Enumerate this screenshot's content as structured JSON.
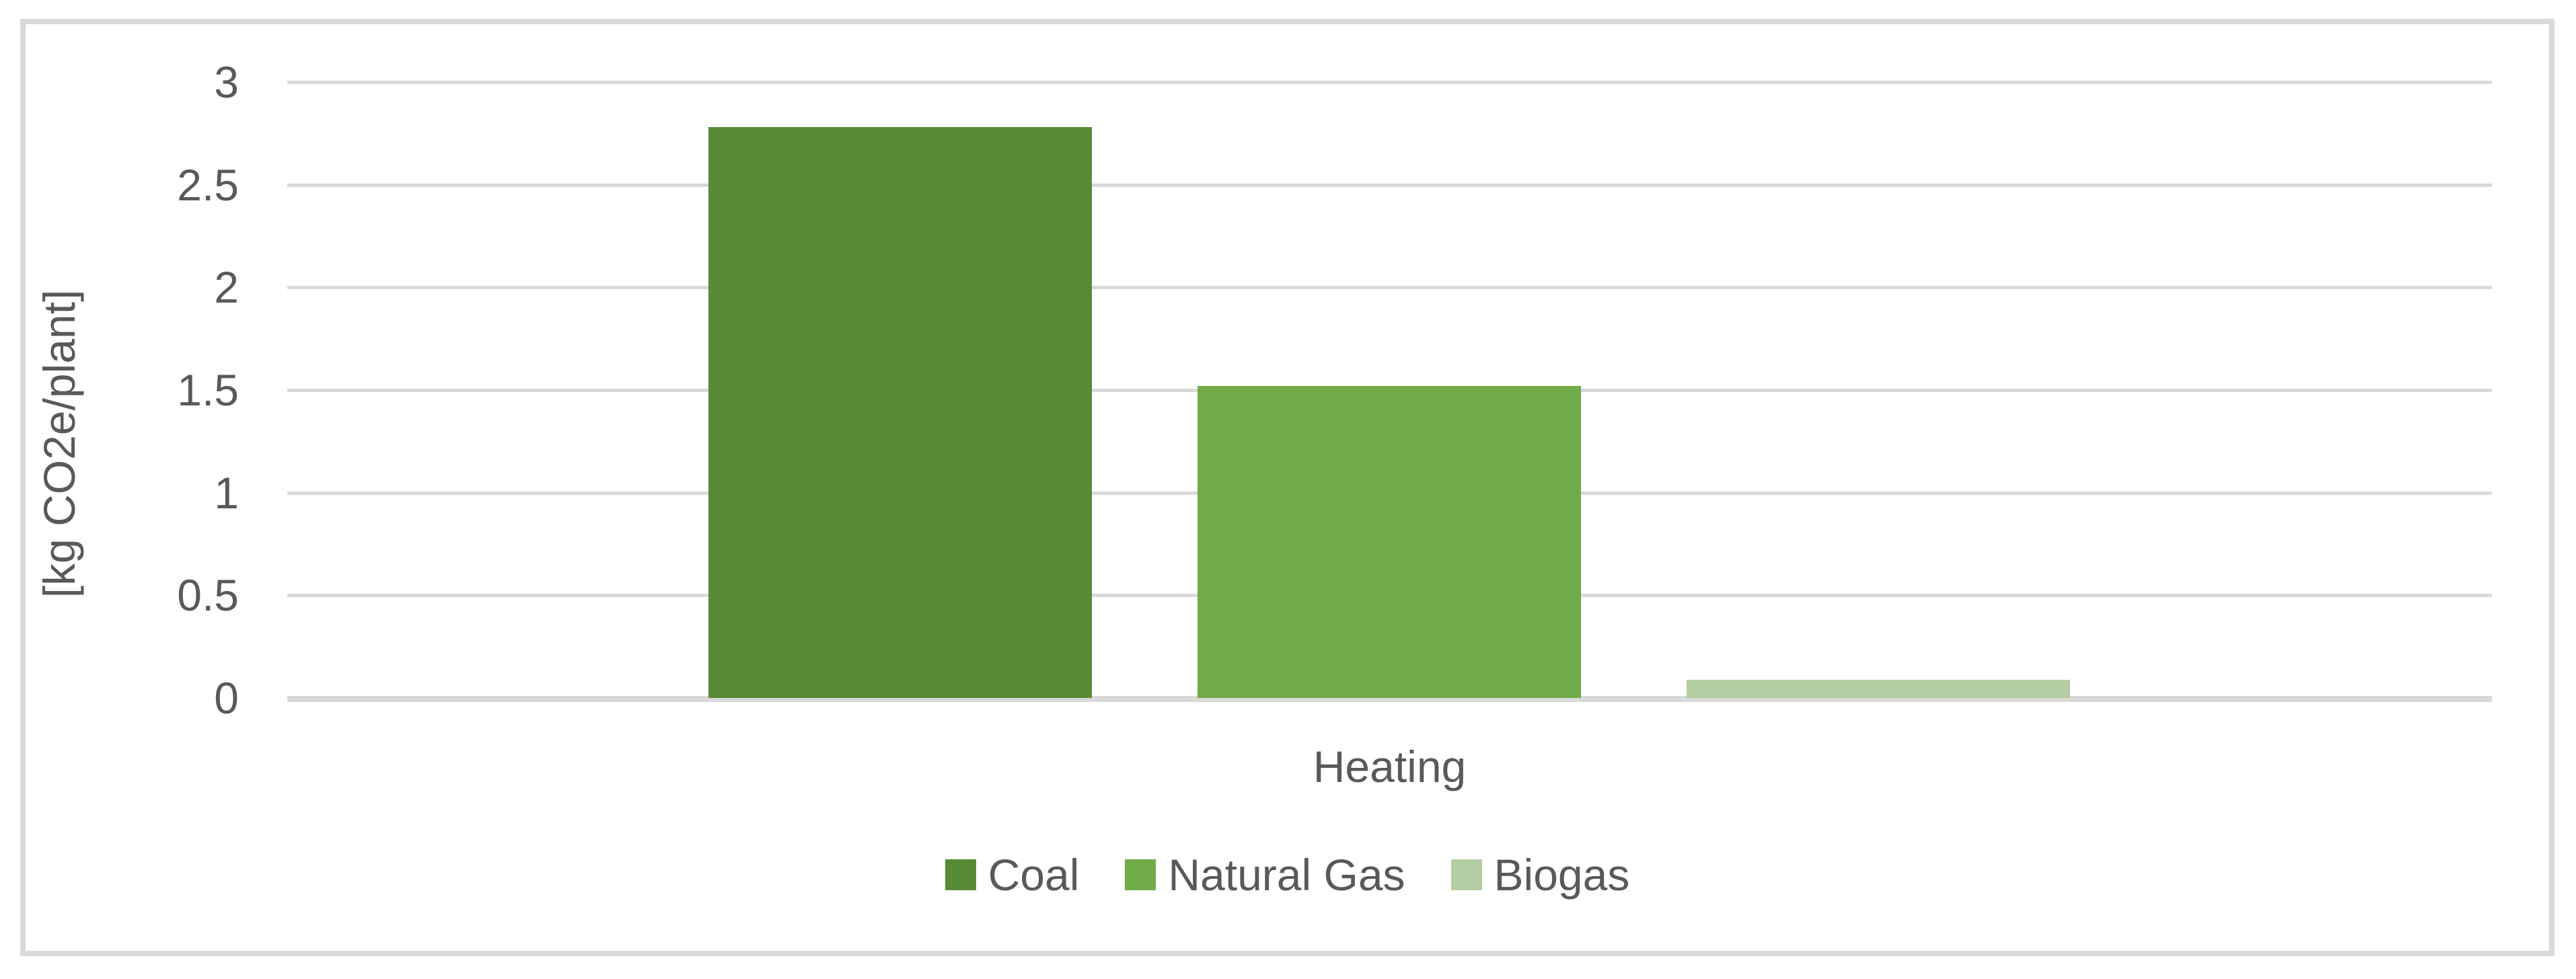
{
  "chart_data": {
    "type": "bar",
    "title": "",
    "categories": [
      "Heating"
    ],
    "series": [
      {
        "name": "Coal",
        "values": [
          2.78
        ],
        "color": "#578B35"
      },
      {
        "name": "Natural Gas",
        "values": [
          1.52
        ],
        "color": "#70AC47"
      },
      {
        "name": "Biogas",
        "values": [
          0.09
        ],
        "color": "#B2CEA2"
      }
    ],
    "xlabel": "",
    "ylabel": "[kg CO2e/plant]",
    "ylim": [
      0,
      3
    ],
    "yticks": [
      3,
      2.5,
      2,
      1.5,
      1,
      0.5,
      0
    ],
    "ytick_labels": [
      "3",
      "2.5",
      "2",
      "1.5",
      "1",
      "0.5",
      "0"
    ],
    "grid": true,
    "legend_position": "bottom"
  },
  "colors": {
    "background": "#FFFFFF",
    "text": "#595959",
    "gridline": "#D9D9D9",
    "axis_line": "#D9D9D9",
    "chart_border": "#D9D9D9"
  }
}
